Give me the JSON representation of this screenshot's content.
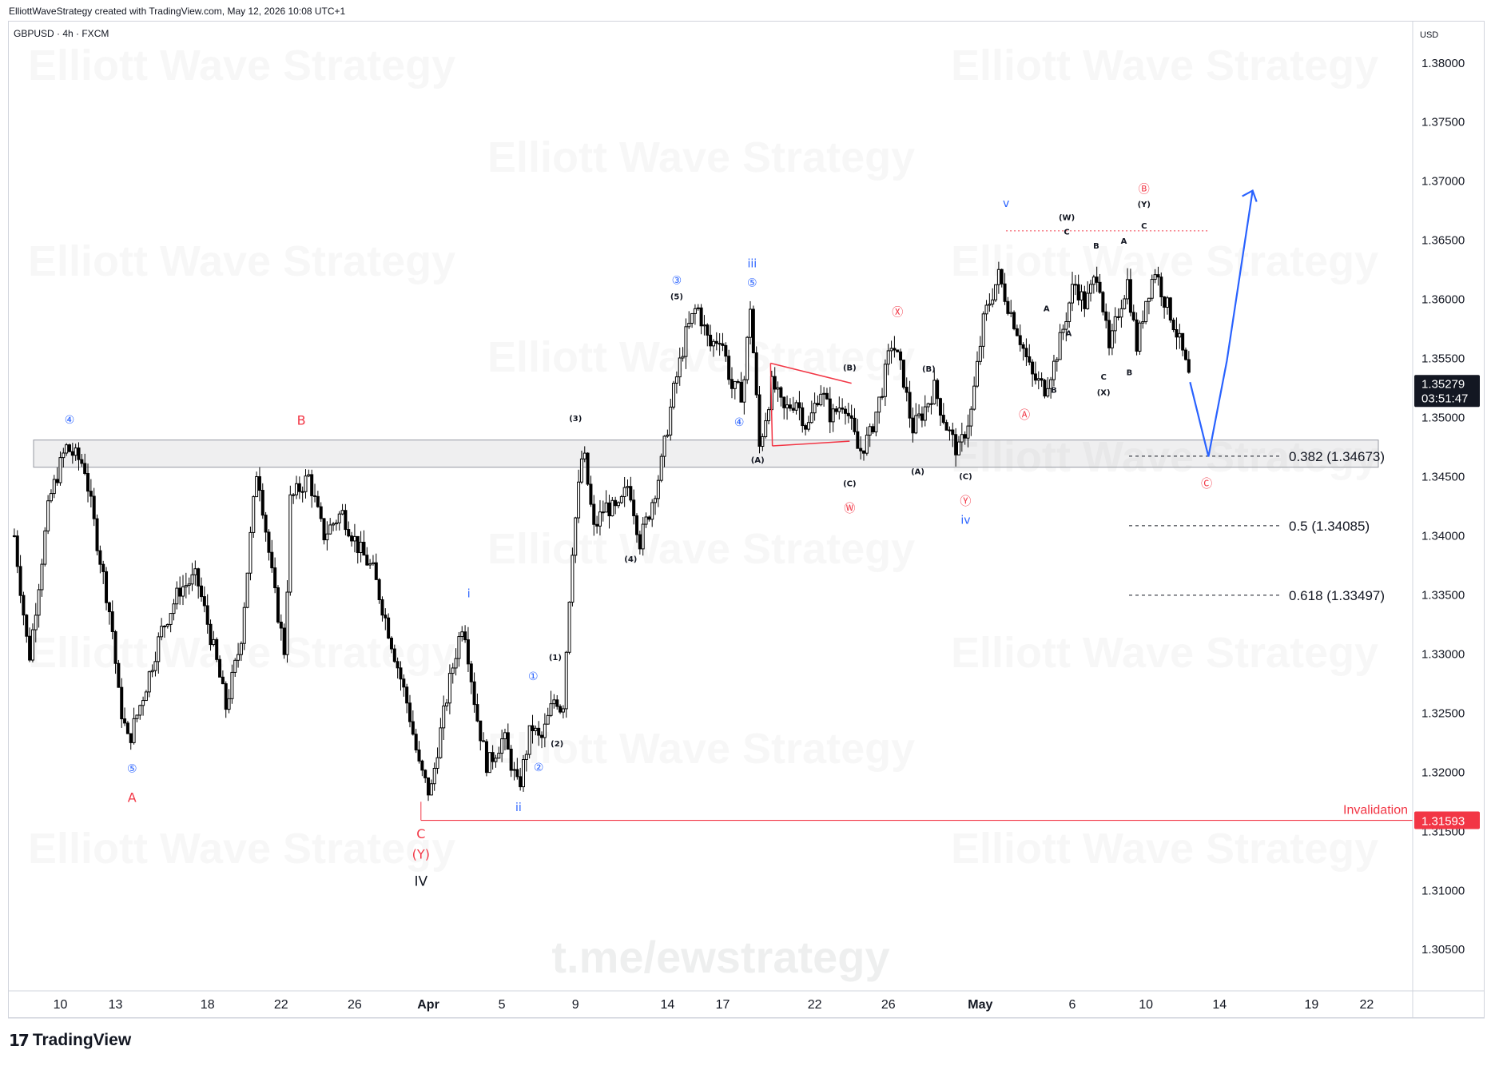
{
  "header": {
    "attribution": "ElliottWaveStrategy created with TradingView.com, May 12, 2026 10:08 UTC+1",
    "symbol": "GBPUSD · 4h · FXCM"
  },
  "footer": {
    "brand": "TradingView"
  },
  "watermarks": {
    "text": "Elliott Wave Strategy",
    "link": "t.me/ewstrategy"
  },
  "colors": {
    "up_candle": "#ffffff",
    "down_candle": "#000000",
    "wick": "#000000",
    "wave_red": "#f23645",
    "wave_blue": "#2962ff",
    "invalidation": "#f23645",
    "price_tag_bg": "#131722"
  },
  "chart_data": {
    "type": "candlestick",
    "currency": "USD",
    "timeframe": "4h",
    "ylim": [
      1.3015,
      1.3835
    ],
    "y_ticks": [
      "1.38000",
      "1.37500",
      "1.37000",
      "1.36500",
      "1.36000",
      "1.35500",
      "1.35000",
      "1.34500",
      "1.34000",
      "1.33500",
      "1.33000",
      "1.32500",
      "1.32000",
      "1.31500",
      "1.31000",
      "1.30500"
    ],
    "x_ticks": [
      {
        "label": "10",
        "day": 0
      },
      {
        "label": "13",
        "day": 3
      },
      {
        "label": "18",
        "day": 8
      },
      {
        "label": "22",
        "day": 12
      },
      {
        "label": "26",
        "day": 16
      },
      {
        "label": "Apr",
        "day": 20
      },
      {
        "label": "5",
        "day": 24
      },
      {
        "label": "9",
        "day": 28
      },
      {
        "label": "14",
        "day": 33
      },
      {
        "label": "17",
        "day": 36
      },
      {
        "label": "22",
        "day": 41
      },
      {
        "label": "26",
        "day": 45
      },
      {
        "label": "May",
        "day": 50
      },
      {
        "label": "6",
        "day": 55
      },
      {
        "label": "10",
        "day": 59
      },
      {
        "label": "14",
        "day": 63
      },
      {
        "label": "19",
        "day": 68
      },
      {
        "label": "22",
        "day": 71
      }
    ],
    "last_price": {
      "value": "1.35279",
      "countdown": "03:51:47"
    },
    "invalidation": {
      "label": "Invalidation",
      "value": "1.31593"
    },
    "fib_levels": [
      {
        "label": "0.382 (1.34673)",
        "value": 1.34673
      },
      {
        "label": "0.5 (1.34085)",
        "value": 1.34085
      },
      {
        "label": "0.618 (1.33497)",
        "value": 1.33497
      }
    ],
    "support_zone": [
      1.3458,
      1.3481
    ],
    "anchors": [
      {
        "day": -2.5,
        "p": 1.34
      },
      {
        "day": -1.7,
        "p": 1.3295
      },
      {
        "day": -0.6,
        "p": 1.343
      },
      {
        "day": 0.3,
        "p": 1.3475
      },
      {
        "day": 1.3,
        "p": 1.346
      },
      {
        "day": 2.0,
        "p": 1.3395
      },
      {
        "day": 2.8,
        "p": 1.3325
      },
      {
        "day": 3.2,
        "p": 1.326
      },
      {
        "day": 3.7,
        "p": 1.3225
      },
      {
        "day": 4.6,
        "p": 1.327
      },
      {
        "day": 5.5,
        "p": 1.332
      },
      {
        "day": 6.5,
        "p": 1.3355
      },
      {
        "day": 7.4,
        "p": 1.3365
      },
      {
        "day": 8.4,
        "p": 1.33
      },
      {
        "day": 9.0,
        "p": 1.3255
      },
      {
        "day": 9.8,
        "p": 1.331
      },
      {
        "day": 10.7,
        "p": 1.346
      },
      {
        "day": 11.6,
        "p": 1.3355
      },
      {
        "day": 12.2,
        "p": 1.33
      },
      {
        "day": 12.5,
        "p": 1.343
      },
      {
        "day": 13.5,
        "p": 1.345
      },
      {
        "day": 14.3,
        "p": 1.34
      },
      {
        "day": 15.3,
        "p": 1.342
      },
      {
        "day": 16.2,
        "p": 1.339
      },
      {
        "day": 17.0,
        "p": 1.337
      },
      {
        "day": 18.0,
        "p": 1.331
      },
      {
        "day": 18.9,
        "p": 1.3255
      },
      {
        "day": 19.5,
        "p": 1.3205
      },
      {
        "day": 20.1,
        "p": 1.318
      },
      {
        "day": 20.5,
        "p": 1.322
      },
      {
        "day": 21.2,
        "p": 1.328
      },
      {
        "day": 21.9,
        "p": 1.333
      },
      {
        "day": 22.6,
        "p": 1.325
      },
      {
        "day": 23.2,
        "p": 1.3205
      },
      {
        "day": 24.1,
        "p": 1.323
      },
      {
        "day": 24.9,
        "p": 1.3185
      },
      {
        "day": 25.6,
        "p": 1.324
      },
      {
        "day": 26.1,
        "p": 1.3225
      },
      {
        "day": 26.9,
        "p": 1.3265
      },
      {
        "day": 27.3,
        "p": 1.325
      },
      {
        "day": 27.8,
        "p": 1.3385
      },
      {
        "day": 28.4,
        "p": 1.3475
      },
      {
        "day": 29.0,
        "p": 1.3405
      },
      {
        "day": 29.6,
        "p": 1.3425
      },
      {
        "day": 30.3,
        "p": 1.342
      },
      {
        "day": 30.9,
        "p": 1.3445
      },
      {
        "day": 31.5,
        "p": 1.3395
      },
      {
        "day": 32.0,
        "p": 1.342
      },
      {
        "day": 32.6,
        "p": 1.3455
      },
      {
        "day": 33.3,
        "p": 1.352
      },
      {
        "day": 34.0,
        "p": 1.357
      },
      {
        "day": 34.6,
        "p": 1.3595
      },
      {
        "day": 35.3,
        "p": 1.356
      },
      {
        "day": 35.9,
        "p": 1.357
      },
      {
        "day": 36.5,
        "p": 1.3525
      },
      {
        "day": 37.1,
        "p": 1.352
      },
      {
        "day": 37.5,
        "p": 1.3595
      },
      {
        "day": 38.0,
        "p": 1.3475
      },
      {
        "day": 38.7,
        "p": 1.353
      },
      {
        "day": 39.3,
        "p": 1.3505
      },
      {
        "day": 40.0,
        "p": 1.3515
      },
      {
        "day": 40.6,
        "p": 1.349
      },
      {
        "day": 41.3,
        "p": 1.3525
      },
      {
        "day": 41.9,
        "p": 1.35
      },
      {
        "day": 42.6,
        "p": 1.3515
      },
      {
        "day": 43.4,
        "p": 1.347
      },
      {
        "day": 44.0,
        "p": 1.3485
      },
      {
        "day": 44.6,
        "p": 1.352
      },
      {
        "day": 45.2,
        "p": 1.3565
      },
      {
        "day": 45.8,
        "p": 1.3535
      },
      {
        "day": 46.3,
        "p": 1.349
      },
      {
        "day": 46.9,
        "p": 1.3505
      },
      {
        "day": 47.5,
        "p": 1.3525
      },
      {
        "day": 48.1,
        "p": 1.3495
      },
      {
        "day": 48.8,
        "p": 1.347
      },
      {
        "day": 49.5,
        "p": 1.3505
      },
      {
        "day": 50.2,
        "p": 1.3585
      },
      {
        "day": 51.0,
        "p": 1.362
      },
      {
        "day": 51.4,
        "p": 1.36
      },
      {
        "day": 52.1,
        "p": 1.357
      },
      {
        "day": 52.8,
        "p": 1.3535
      },
      {
        "day": 53.5,
        "p": 1.3525
      },
      {
        "day": 54.0,
        "p": 1.3545
      },
      {
        "day": 54.5,
        "p": 1.3575
      },
      {
        "day": 55.1,
        "p": 1.3615
      },
      {
        "day": 55.7,
        "p": 1.3595
      },
      {
        "day": 56.4,
        "p": 1.3625
      },
      {
        "day": 57.0,
        "p": 1.3555
      },
      {
        "day": 57.5,
        "p": 1.359
      },
      {
        "day": 58.0,
        "p": 1.3615
      },
      {
        "day": 58.5,
        "p": 1.356
      },
      {
        "day": 59.0,
        "p": 1.36
      },
      {
        "day": 59.5,
        "p": 1.3625
      },
      {
        "day": 60.0,
        "p": 1.36
      },
      {
        "day": 60.4,
        "p": 1.3585
      },
      {
        "day": 60.9,
        "p": 1.356
      },
      {
        "day": 61.4,
        "p": 1.353
      }
    ],
    "annotations": [
      {
        "text": "④",
        "day": 0.5,
        "p": 1.3495,
        "color": "#2962ff",
        "size": 14
      },
      {
        "text": "⑤",
        "day": 3.9,
        "p": 1.32,
        "color": "#2962ff",
        "size": 14
      },
      {
        "text": "A",
        "day": 3.9,
        "p": 1.3175,
        "color": "#f23645",
        "size": 16
      },
      {
        "text": "B",
        "day": 13.1,
        "p": 1.3494,
        "color": "#f23645",
        "size": 16
      },
      {
        "text": "C",
        "day": 19.6,
        "p": 1.3144,
        "color": "#f23645",
        "size": 16
      },
      {
        "text": "(Y)",
        "day": 19.6,
        "p": 1.3127,
        "color": "#f23645",
        "size": 16
      },
      {
        "text": "IV",
        "day": 19.6,
        "p": 1.3104,
        "color": "#131722",
        "size": 17
      },
      {
        "text": "i",
        "day": 22.2,
        "p": 1.3348,
        "color": "#2962ff",
        "size": 14
      },
      {
        "text": "ii",
        "day": 24.9,
        "p": 1.3167,
        "color": "#2962ff",
        "size": 14
      },
      {
        "text": "①",
        "day": 25.7,
        "p": 1.3278,
        "color": "#2962ff",
        "size": 14
      },
      {
        "text": "②",
        "day": 26.0,
        "p": 1.3201,
        "color": "#2962ff",
        "size": 14
      },
      {
        "text": "(1)",
        "day": 26.9,
        "p": 1.3295,
        "color": "#131722",
        "size": 10
      },
      {
        "text": "(2)",
        "day": 27.0,
        "p": 1.3222,
        "color": "#131722",
        "size": 10
      },
      {
        "text": "(3)",
        "day": 28.0,
        "p": 1.3497,
        "color": "#131722",
        "size": 10
      },
      {
        "text": "(4)",
        "day": 31.0,
        "p": 1.3378,
        "color": "#131722",
        "size": 10
      },
      {
        "text": "③",
        "day": 33.5,
        "p": 1.3613,
        "color": "#2962ff",
        "size": 14
      },
      {
        "text": "(5)",
        "day": 33.5,
        "p": 1.36,
        "color": "#131722",
        "size": 10
      },
      {
        "text": "iii",
        "day": 37.6,
        "p": 1.3627,
        "color": "#2962ff",
        "size": 14
      },
      {
        "text": "⑤",
        "day": 37.6,
        "p": 1.3611,
        "color": "#2962ff",
        "size": 14
      },
      {
        "text": "④",
        "day": 36.9,
        "p": 1.3493,
        "color": "#2962ff",
        "size": 14
      },
      {
        "text": "(A)",
        "day": 37.9,
        "p": 1.3462,
        "color": "#131722",
        "size": 10
      },
      {
        "text": "(B)",
        "day": 42.9,
        "p": 1.354,
        "color": "#131722",
        "size": 10
      },
      {
        "text": "(C)",
        "day": 42.9,
        "p": 1.3442,
        "color": "#131722",
        "size": 10
      },
      {
        "text": "Ⓦ",
        "day": 42.9,
        "p": 1.342,
        "color": "#f23645",
        "size": 14
      },
      {
        "text": "Ⓧ",
        "day": 45.5,
        "p": 1.3586,
        "color": "#f23645",
        "size": 14
      },
      {
        "text": "(B)",
        "day": 47.2,
        "p": 1.3539,
        "color": "#131722",
        "size": 10
      },
      {
        "text": "(A)",
        "day": 46.6,
        "p": 1.3452,
        "color": "#131722",
        "size": 10
      },
      {
        "text": "(C)",
        "day": 49.2,
        "p": 1.3448,
        "color": "#131722",
        "size": 10
      },
      {
        "text": "Ⓨ",
        "day": 49.2,
        "p": 1.3426,
        "color": "#f23645",
        "size": 14
      },
      {
        "text": "iv",
        "day": 49.2,
        "p": 1.341,
        "color": "#2962ff",
        "size": 14
      },
      {
        "text": "v",
        "day": 51.4,
        "p": 1.3678,
        "color": "#2962ff",
        "size": 14
      },
      {
        "text": "(W)",
        "day": 54.7,
        "p": 1.3667,
        "color": "#131722",
        "size": 10
      },
      {
        "text": "C",
        "day": 54.7,
        "p": 1.3655,
        "color": "#131722",
        "size": 10
      },
      {
        "text": "A",
        "day": 53.6,
        "p": 1.359,
        "color": "#131722",
        "size": 10
      },
      {
        "text": "A",
        "day": 54.8,
        "p": 1.3569,
        "color": "#131722",
        "size": 10
      },
      {
        "text": "B",
        "day": 54.0,
        "p": 1.3521,
        "color": "#131722",
        "size": 10
      },
      {
        "text": "B",
        "day": 56.3,
        "p": 1.3643,
        "color": "#131722",
        "size": 10
      },
      {
        "text": "C",
        "day": 56.7,
        "p": 1.3532,
        "color": "#131722",
        "size": 10
      },
      {
        "text": "(X)",
        "day": 56.7,
        "p": 1.3519,
        "color": "#131722",
        "size": 10
      },
      {
        "text": "A",
        "day": 57.8,
        "p": 1.3647,
        "color": "#131722",
        "size": 10
      },
      {
        "text": "B",
        "day": 58.1,
        "p": 1.3536,
        "color": "#131722",
        "size": 10
      },
      {
        "text": "Ⓑ",
        "day": 58.9,
        "p": 1.369,
        "color": "#f23645",
        "size": 14
      },
      {
        "text": "(Y)",
        "day": 58.9,
        "p": 1.3678,
        "color": "#131722",
        "size": 10
      },
      {
        "text": "C",
        "day": 58.9,
        "p": 1.366,
        "color": "#131722",
        "size": 10
      },
      {
        "text": "Ⓐ",
        "day": 52.4,
        "p": 1.3499,
        "color": "#f23645",
        "size": 14
      },
      {
        "text": "Ⓒ",
        "day": 62.3,
        "p": 1.3441,
        "color": "#f23645",
        "size": 14
      }
    ]
  }
}
